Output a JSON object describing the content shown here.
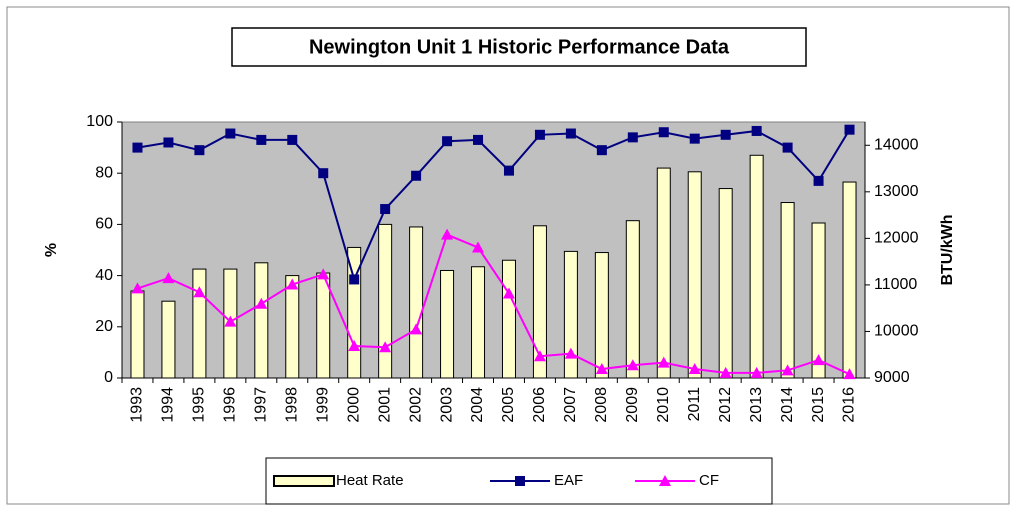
{
  "chart_data": {
    "type": "bar-line",
    "title": "Newington Unit 1 Historic Performance Data",
    "y_label": "%",
    "y2_label": "BTU/kWh",
    "categories": [
      "1993",
      "1994",
      "1995",
      "1996",
      "1997",
      "1998",
      "1999",
      "2000",
      "2001",
      "2002",
      "2003",
      "2004",
      "2005",
      "2006",
      "2007",
      "2008",
      "2009",
      "2010",
      "2011",
      "2012",
      "2013",
      "2014",
      "2015",
      "2016"
    ],
    "series": [
      {
        "name": "Heat Rate",
        "type": "bar",
        "axis": "y2",
        "color": "#ffffcc",
        "values": [
          10870,
          10650,
          11340,
          11340,
          11475,
          11200,
          11255,
          11805,
          12300,
          12245,
          11310,
          11390,
          11530,
          12270,
          11720,
          11695,
          12380,
          13510,
          13430,
          13070,
          13785,
          12770,
          12330,
          13210
        ]
      },
      {
        "name": "EAF",
        "type": "line",
        "marker": "square",
        "color": "#000080",
        "values": [
          90,
          92,
          89,
          95.5,
          93,
          93,
          80,
          38.5,
          66,
          79,
          92.5,
          93,
          81,
          95,
          95.5,
          89,
          94,
          96,
          93.5,
          95,
          96.5,
          90,
          77,
          97
        ]
      },
      {
        "name": "CF",
        "type": "line",
        "marker": "triangle",
        "color": "#ff00ff",
        "values": [
          35,
          39,
          33.5,
          22,
          29,
          36.5,
          40.5,
          12.5,
          12,
          19,
          56,
          51,
          33,
          8.5,
          9.5,
          3.5,
          5,
          6,
          3.5,
          2,
          2,
          3,
          7,
          1.5
        ]
      }
    ],
    "ylim": [
      0,
      100
    ],
    "yticks": [
      0,
      20,
      40,
      60,
      80,
      100
    ],
    "y2lim": [
      9000,
      14500
    ],
    "y2ticks": [
      9000,
      10000,
      11000,
      12000,
      13000,
      14000
    ],
    "grid": false,
    "plot_background": "#c0c0c0",
    "legend_position": "bottom"
  }
}
